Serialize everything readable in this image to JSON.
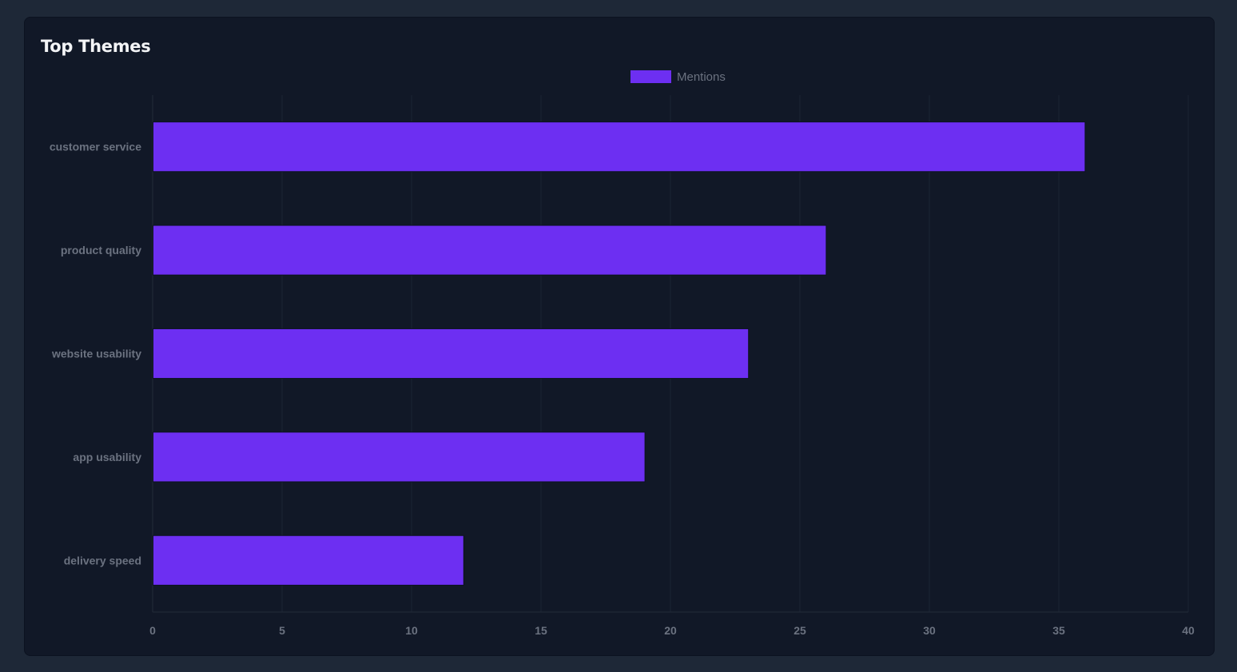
{
  "card": {
    "title": "Top Themes"
  },
  "colors": {
    "page_background": "#1e2837",
    "card_background": "#111827",
    "bar_fill": "#6d2ff2",
    "grid": "#1c2433",
    "text_muted": "#6b7280",
    "title": "#f3f4f6"
  },
  "chart_data": {
    "type": "bar",
    "orientation": "horizontal",
    "title": "Top Themes",
    "xlabel": "",
    "ylabel": "",
    "categories": [
      "customer service",
      "product quality",
      "website usability",
      "app usability",
      "delivery speed"
    ],
    "series": [
      {
        "name": "Mentions",
        "values": [
          36,
          26,
          23,
          19,
          12
        ]
      }
    ],
    "xlim": [
      0,
      40
    ],
    "x_ticks": [
      0,
      5,
      10,
      15,
      20,
      25,
      30,
      35,
      40
    ],
    "grid": true,
    "legend": "top-center"
  }
}
